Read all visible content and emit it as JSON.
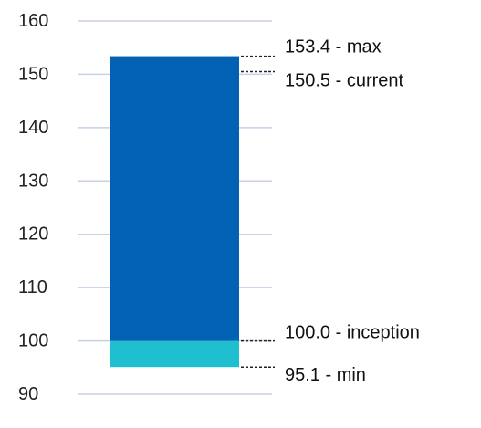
{
  "chart_data": {
    "type": "bar",
    "ylim": [
      90,
      160
    ],
    "yticks": [
      160,
      150,
      140,
      130,
      120,
      110,
      100,
      90
    ],
    "grid": true,
    "segments": [
      {
        "from": 95.1,
        "to": 100.0,
        "color": "#20bfcf"
      },
      {
        "from": 100.0,
        "to": 153.4,
        "color": "#0361b3"
      }
    ],
    "annotations": [
      {
        "value": 153.4,
        "text": "153.4 - max"
      },
      {
        "value": 150.5,
        "text": "150.5 - current"
      },
      {
        "value": 100.0,
        "text": "100.0 - inception"
      },
      {
        "value": 95.1,
        "text": "95.1 - min"
      }
    ]
  }
}
